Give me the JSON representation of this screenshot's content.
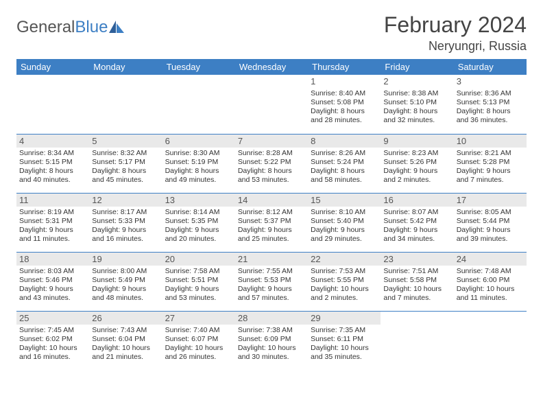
{
  "brand": {
    "part1": "General",
    "part2": "Blue"
  },
  "title": "February 2024",
  "location": "Neryungri, Russia",
  "colors": {
    "header_bg": "#3d7fc4",
    "header_text": "#ffffff",
    "border": "#3d7fc4",
    "shaded_bg": "#e9e9e9",
    "text": "#333333"
  },
  "day_headers": [
    "Sunday",
    "Monday",
    "Tuesday",
    "Wednesday",
    "Thursday",
    "Friday",
    "Saturday"
  ],
  "weeks": [
    {
      "shaded": false,
      "days": [
        {
          "n": "",
          "sr": "",
          "ss": "",
          "dl1": "",
          "dl2": ""
        },
        {
          "n": "",
          "sr": "",
          "ss": "",
          "dl1": "",
          "dl2": ""
        },
        {
          "n": "",
          "sr": "",
          "ss": "",
          "dl1": "",
          "dl2": ""
        },
        {
          "n": "",
          "sr": "",
          "ss": "",
          "dl1": "",
          "dl2": ""
        },
        {
          "n": "1",
          "sr": "Sunrise: 8:40 AM",
          "ss": "Sunset: 5:08 PM",
          "dl1": "Daylight: 8 hours",
          "dl2": "and 28 minutes."
        },
        {
          "n": "2",
          "sr": "Sunrise: 8:38 AM",
          "ss": "Sunset: 5:10 PM",
          "dl1": "Daylight: 8 hours",
          "dl2": "and 32 minutes."
        },
        {
          "n": "3",
          "sr": "Sunrise: 8:36 AM",
          "ss": "Sunset: 5:13 PM",
          "dl1": "Daylight: 8 hours",
          "dl2": "and 36 minutes."
        }
      ]
    },
    {
      "shaded": true,
      "days": [
        {
          "n": "4",
          "sr": "Sunrise: 8:34 AM",
          "ss": "Sunset: 5:15 PM",
          "dl1": "Daylight: 8 hours",
          "dl2": "and 40 minutes."
        },
        {
          "n": "5",
          "sr": "Sunrise: 8:32 AM",
          "ss": "Sunset: 5:17 PM",
          "dl1": "Daylight: 8 hours",
          "dl2": "and 45 minutes."
        },
        {
          "n": "6",
          "sr": "Sunrise: 8:30 AM",
          "ss": "Sunset: 5:19 PM",
          "dl1": "Daylight: 8 hours",
          "dl2": "and 49 minutes."
        },
        {
          "n": "7",
          "sr": "Sunrise: 8:28 AM",
          "ss": "Sunset: 5:22 PM",
          "dl1": "Daylight: 8 hours",
          "dl2": "and 53 minutes."
        },
        {
          "n": "8",
          "sr": "Sunrise: 8:26 AM",
          "ss": "Sunset: 5:24 PM",
          "dl1": "Daylight: 8 hours",
          "dl2": "and 58 minutes."
        },
        {
          "n": "9",
          "sr": "Sunrise: 8:23 AM",
          "ss": "Sunset: 5:26 PM",
          "dl1": "Daylight: 9 hours",
          "dl2": "and 2 minutes."
        },
        {
          "n": "10",
          "sr": "Sunrise: 8:21 AM",
          "ss": "Sunset: 5:28 PM",
          "dl1": "Daylight: 9 hours",
          "dl2": "and 7 minutes."
        }
      ]
    },
    {
      "shaded": true,
      "days": [
        {
          "n": "11",
          "sr": "Sunrise: 8:19 AM",
          "ss": "Sunset: 5:31 PM",
          "dl1": "Daylight: 9 hours",
          "dl2": "and 11 minutes."
        },
        {
          "n": "12",
          "sr": "Sunrise: 8:17 AM",
          "ss": "Sunset: 5:33 PM",
          "dl1": "Daylight: 9 hours",
          "dl2": "and 16 minutes."
        },
        {
          "n": "13",
          "sr": "Sunrise: 8:14 AM",
          "ss": "Sunset: 5:35 PM",
          "dl1": "Daylight: 9 hours",
          "dl2": "and 20 minutes."
        },
        {
          "n": "14",
          "sr": "Sunrise: 8:12 AM",
          "ss": "Sunset: 5:37 PM",
          "dl1": "Daylight: 9 hours",
          "dl2": "and 25 minutes."
        },
        {
          "n": "15",
          "sr": "Sunrise: 8:10 AM",
          "ss": "Sunset: 5:40 PM",
          "dl1": "Daylight: 9 hours",
          "dl2": "and 29 minutes."
        },
        {
          "n": "16",
          "sr": "Sunrise: 8:07 AM",
          "ss": "Sunset: 5:42 PM",
          "dl1": "Daylight: 9 hours",
          "dl2": "and 34 minutes."
        },
        {
          "n": "17",
          "sr": "Sunrise: 8:05 AM",
          "ss": "Sunset: 5:44 PM",
          "dl1": "Daylight: 9 hours",
          "dl2": "and 39 minutes."
        }
      ]
    },
    {
      "shaded": true,
      "days": [
        {
          "n": "18",
          "sr": "Sunrise: 8:03 AM",
          "ss": "Sunset: 5:46 PM",
          "dl1": "Daylight: 9 hours",
          "dl2": "and 43 minutes."
        },
        {
          "n": "19",
          "sr": "Sunrise: 8:00 AM",
          "ss": "Sunset: 5:49 PM",
          "dl1": "Daylight: 9 hours",
          "dl2": "and 48 minutes."
        },
        {
          "n": "20",
          "sr": "Sunrise: 7:58 AM",
          "ss": "Sunset: 5:51 PM",
          "dl1": "Daylight: 9 hours",
          "dl2": "and 53 minutes."
        },
        {
          "n": "21",
          "sr": "Sunrise: 7:55 AM",
          "ss": "Sunset: 5:53 PM",
          "dl1": "Daylight: 9 hours",
          "dl2": "and 57 minutes."
        },
        {
          "n": "22",
          "sr": "Sunrise: 7:53 AM",
          "ss": "Sunset: 5:55 PM",
          "dl1": "Daylight: 10 hours",
          "dl2": "and 2 minutes."
        },
        {
          "n": "23",
          "sr": "Sunrise: 7:51 AM",
          "ss": "Sunset: 5:58 PM",
          "dl1": "Daylight: 10 hours",
          "dl2": "and 7 minutes."
        },
        {
          "n": "24",
          "sr": "Sunrise: 7:48 AM",
          "ss": "Sunset: 6:00 PM",
          "dl1": "Daylight: 10 hours",
          "dl2": "and 11 minutes."
        }
      ]
    },
    {
      "shaded": true,
      "days": [
        {
          "n": "25",
          "sr": "Sunrise: 7:45 AM",
          "ss": "Sunset: 6:02 PM",
          "dl1": "Daylight: 10 hours",
          "dl2": "and 16 minutes."
        },
        {
          "n": "26",
          "sr": "Sunrise: 7:43 AM",
          "ss": "Sunset: 6:04 PM",
          "dl1": "Daylight: 10 hours",
          "dl2": "and 21 minutes."
        },
        {
          "n": "27",
          "sr": "Sunrise: 7:40 AM",
          "ss": "Sunset: 6:07 PM",
          "dl1": "Daylight: 10 hours",
          "dl2": "and 26 minutes."
        },
        {
          "n": "28",
          "sr": "Sunrise: 7:38 AM",
          "ss": "Sunset: 6:09 PM",
          "dl1": "Daylight: 10 hours",
          "dl2": "and 30 minutes."
        },
        {
          "n": "29",
          "sr": "Sunrise: 7:35 AM",
          "ss": "Sunset: 6:11 PM",
          "dl1": "Daylight: 10 hours",
          "dl2": "and 35 minutes."
        },
        {
          "n": "",
          "sr": "",
          "ss": "",
          "dl1": "",
          "dl2": ""
        },
        {
          "n": "",
          "sr": "",
          "ss": "",
          "dl1": "",
          "dl2": ""
        }
      ]
    }
  ]
}
